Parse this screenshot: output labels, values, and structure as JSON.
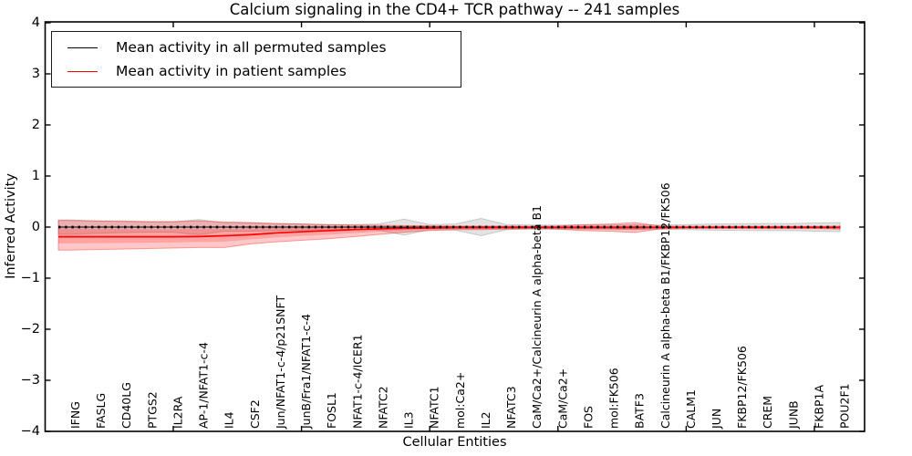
{
  "legend": {
    "items": [
      {
        "label": "Mean activity in all permuted samples",
        "color": "#000000"
      },
      {
        "label": "Mean activity in patient samples",
        "color": "#ff0000"
      }
    ]
  },
  "chart_data": {
    "type": "line",
    "title": "Calcium signaling in the CD4+ TCR pathway -- 241 samples",
    "xlabel": "Cellular Entities",
    "ylabel": "Inferred Activity",
    "ylim": [
      -4,
      4
    ],
    "yticks": [
      4,
      3,
      2,
      1,
      0,
      -1,
      -2,
      -3,
      -4
    ],
    "xtick_indices": [
      4,
      9,
      14,
      19,
      24,
      29
    ],
    "grid": false,
    "legend_position": "upper left",
    "categories": [
      "IFNG",
      "FASLG",
      "CD40LG",
      "PTGS2",
      "IL2RA",
      "AP-1/NFAT1-c-4",
      "IL4",
      "CSF2",
      "Jun/NFAT1-c-4/p21SNFT",
      "JunB/Fra1/NFAT1-c-4",
      "FOSL1",
      "NFAT1-c-4/ICER1",
      "NFATC2",
      "IL3",
      "NFATC1",
      "mol:Ca2+",
      "IL2",
      "NFATC3",
      "CaM/Ca2+/Calcineurin A alpha-beta B1",
      "CaM/Ca2+",
      "FOS",
      "mol:FK506",
      "BATF3",
      "Calcineurin A alpha-beta B1/FKBP12/FK506",
      "CALM1",
      "JUN",
      "FKBP12/FK506",
      "CREM",
      "JUNB",
      "FKBP1A",
      "POU2F1"
    ],
    "series": [
      {
        "name": "Mean activity in all permuted samples",
        "color": "#000000",
        "style": "solid-with-square-dots",
        "values": [
          0,
          0,
          0,
          0,
          0,
          0,
          0,
          0,
          0,
          0,
          0,
          0,
          0,
          0,
          0,
          0,
          0,
          0,
          0,
          0,
          0,
          0,
          0,
          0,
          0,
          0,
          0,
          0,
          0,
          0,
          0
        ]
      },
      {
        "name": "Mean activity in patient samples",
        "color": "#ff0000",
        "style": "solid",
        "values": [
          -0.19,
          -0.19,
          -0.19,
          -0.19,
          -0.19,
          -0.185,
          -0.17,
          -0.15,
          -0.115,
          -0.09,
          -0.07,
          -0.05,
          -0.035,
          -0.025,
          -0.018,
          -0.012,
          -0.012,
          -0.01,
          -0.008,
          -0.008,
          -0.01,
          -0.01,
          -0.012,
          -0.008,
          -0.006,
          -0.006,
          -0.005,
          -0.005,
          -0.005,
          -0.005,
          -0.008
        ]
      }
    ],
    "bands": [
      {
        "name": "permuted-samples-range",
        "color": "#808080",
        "upper": [
          0.14,
          0.12,
          0.11,
          0.1,
          0.1,
          0.15,
          0.08,
          0.08,
          0.07,
          0.06,
          0.05,
          0.05,
          0.06,
          0.155,
          0.05,
          0.06,
          0.17,
          0.05,
          0.04,
          0.04,
          0.04,
          0.04,
          0.05,
          0.04,
          0.05,
          0.06,
          0.065,
          0.07,
          0.07,
          0.08,
          0.09
        ],
        "lower": [
          -0.14,
          -0.12,
          -0.11,
          -0.1,
          -0.1,
          -0.15,
          -0.08,
          -0.08,
          -0.07,
          -0.06,
          -0.05,
          -0.05,
          -0.06,
          -0.155,
          -0.05,
          -0.06,
          -0.17,
          -0.05,
          -0.04,
          -0.04,
          -0.04,
          -0.04,
          -0.05,
          -0.04,
          -0.05,
          -0.06,
          -0.065,
          -0.07,
          -0.07,
          -0.08,
          -0.09
        ]
      },
      {
        "name": "patient-samples-range",
        "color": "#ff0000",
        "upper": [
          0.13,
          0.12,
          0.12,
          0.11,
          0.11,
          0.12,
          0.1,
          0.09,
          0.07,
          0.06,
          0.05,
          0.04,
          0.035,
          0.03,
          0.025,
          0.02,
          0.02,
          0.02,
          0.015,
          0.02,
          0.05,
          0.06,
          0.09,
          0.02,
          0.015,
          0.015,
          0.015,
          0.015,
          0.015,
          0.015,
          0.02
        ],
        "lower": [
          -0.45,
          -0.44,
          -0.43,
          -0.42,
          -0.41,
          -0.4,
          -0.4,
          -0.33,
          -0.29,
          -0.26,
          -0.23,
          -0.19,
          -0.145,
          -0.1,
          -0.068,
          -0.05,
          -0.05,
          -0.04,
          -0.03,
          -0.04,
          -0.07,
          -0.08,
          -0.105,
          -0.035,
          -0.025,
          -0.025,
          -0.025,
          -0.03,
          -0.03,
          -0.03,
          -0.04
        ]
      }
    ]
  }
}
